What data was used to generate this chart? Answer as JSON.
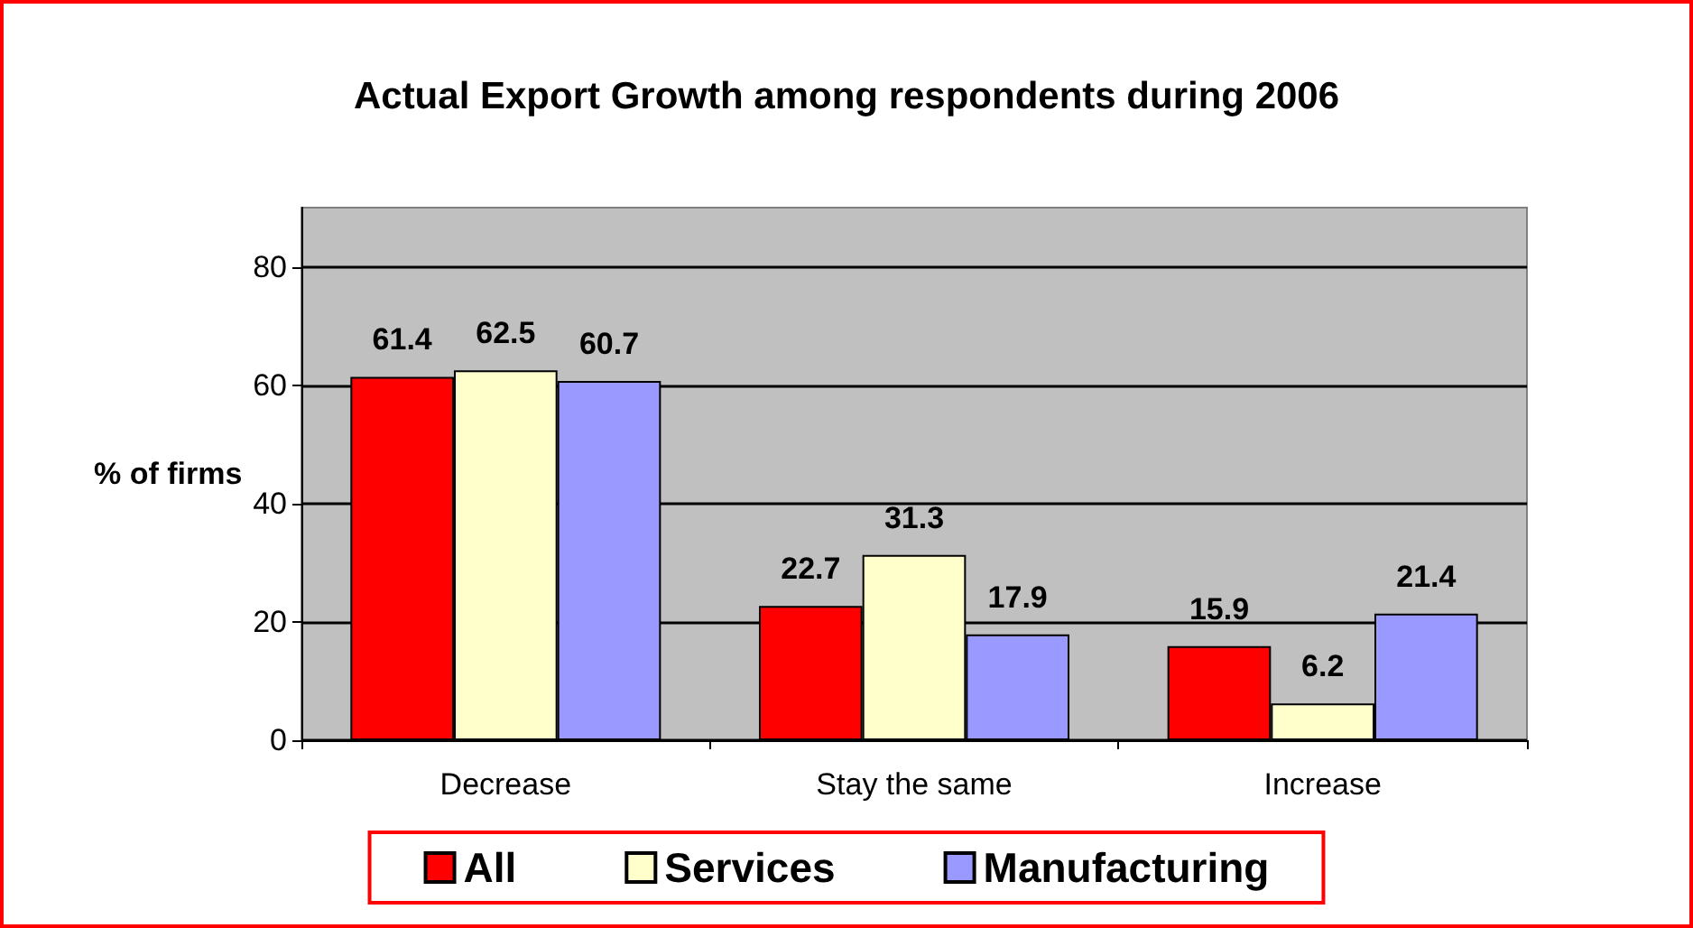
{
  "chart_data": {
    "type": "bar",
    "title": "Actual Export Growth among respondents during 2006",
    "ylabel": "% of firms",
    "categories": [
      "Decrease",
      "Stay the same",
      "Increase"
    ],
    "series": [
      {
        "name": "All",
        "color": "#ff0000",
        "values": [
          61.4,
          22.7,
          15.9
        ]
      },
      {
        "name": "Services",
        "color": "#ffffcc",
        "values": [
          62.5,
          31.3,
          6.2
        ]
      },
      {
        "name": "Manufacturing",
        "color": "#9999ff",
        "values": [
          60.7,
          17.9,
          21.4
        ]
      }
    ],
    "ylim": [
      0,
      90
    ],
    "yticks": [
      0,
      20,
      40,
      60,
      80
    ],
    "grid": "y",
    "legend": "bottom",
    "data_labels": true
  }
}
